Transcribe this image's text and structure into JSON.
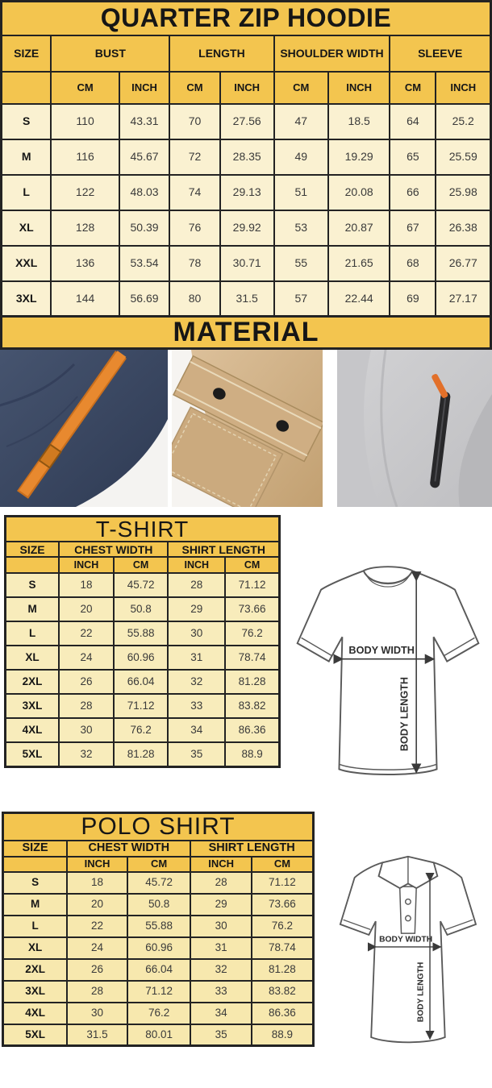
{
  "colors": {
    "band_yellow": "#f3c54f",
    "hoodie_cell": "#faf1d1",
    "tshirt_cell": "#f8ecbb",
    "polo_cell": "#f7e8ae",
    "table_border": "#232323",
    "photo_navy": "#3d4b66",
    "photo_orange": "#e8892f",
    "photo_khaki": "#cfae83",
    "photo_gray": "#c9c9cb"
  },
  "hoodie_chart": {
    "title": "QUARTER ZIP HOODIE",
    "size_header": "SIZE",
    "groups": [
      "BUST",
      "LENGTH",
      "SHOULDER WIDTH",
      "SLEEVE"
    ],
    "units": [
      "CM",
      "INCH",
      "CM",
      "INCH",
      "CM",
      "INCH",
      "CM",
      "INCH"
    ],
    "rows": [
      {
        "size": "S",
        "values": [
          "110",
          "43.31",
          "70",
          "27.56",
          "47",
          "18.5",
          "64",
          "25.2"
        ]
      },
      {
        "size": "M",
        "values": [
          "116",
          "45.67",
          "72",
          "28.35",
          "49",
          "19.29",
          "65",
          "25.59"
        ]
      },
      {
        "size": "L",
        "values": [
          "122",
          "48.03",
          "74",
          "29.13",
          "51",
          "20.08",
          "66",
          "25.98"
        ]
      },
      {
        "size": "XL",
        "values": [
          "128",
          "50.39",
          "76",
          "29.92",
          "53",
          "20.87",
          "67",
          "26.38"
        ]
      },
      {
        "size": "XXL",
        "values": [
          "136",
          "53.54",
          "78",
          "30.71",
          "55",
          "21.65",
          "68",
          "26.77"
        ]
      },
      {
        "size": "3XL",
        "values": [
          "144",
          "56.69",
          "80",
          "31.5",
          "57",
          "22.44",
          "69",
          "27.17"
        ]
      }
    ]
  },
  "material": {
    "title": "MATERIAL",
    "photos": [
      {
        "name": "navy-fleece-with-orange-drawcord"
      },
      {
        "name": "khaki-fabric-snap-flap-pocket"
      },
      {
        "name": "gray-fleece-zip-pocket"
      }
    ]
  },
  "tshirt_chart": {
    "title": "T-SHIRT",
    "size_header": "SIZE",
    "groups": [
      "CHEST WIDTH",
      "SHIRT LENGTH"
    ],
    "units": [
      "INCH",
      "CM",
      "INCH",
      "CM"
    ],
    "rows": [
      {
        "size": "S",
        "values": [
          "18",
          "45.72",
          "28",
          "71.12"
        ]
      },
      {
        "size": "M",
        "values": [
          "20",
          "50.8",
          "29",
          "73.66"
        ]
      },
      {
        "size": "L",
        "values": [
          "22",
          "55.88",
          "30",
          "76.2"
        ]
      },
      {
        "size": "XL",
        "values": [
          "24",
          "60.96",
          "31",
          "78.74"
        ]
      },
      {
        "size": "2XL",
        "values": [
          "26",
          "66.04",
          "32",
          "81.28"
        ]
      },
      {
        "size": "3XL",
        "values": [
          "28",
          "71.12",
          "33",
          "83.82"
        ]
      },
      {
        "size": "4XL",
        "values": [
          "30",
          "76.2",
          "34",
          "86.36"
        ]
      },
      {
        "size": "5XL",
        "values": [
          "32",
          "81.28",
          "35",
          "88.9"
        ]
      }
    ],
    "diagram": {
      "width_label": "BODY WIDTH",
      "length_label": "BODY LENGTH"
    }
  },
  "polo_chart": {
    "title": "POLO SHIRT",
    "size_header": "SIZE",
    "groups": [
      "CHEST WIDTH",
      "SHIRT LENGTH"
    ],
    "units": [
      "INCH",
      "CM",
      "INCH",
      "CM"
    ],
    "rows": [
      {
        "size": "S",
        "values": [
          "18",
          "45.72",
          "28",
          "71.12"
        ]
      },
      {
        "size": "M",
        "values": [
          "20",
          "50.8",
          "29",
          "73.66"
        ]
      },
      {
        "size": "L",
        "values": [
          "22",
          "55.88",
          "30",
          "76.2"
        ]
      },
      {
        "size": "XL",
        "values": [
          "24",
          "60.96",
          "31",
          "78.74"
        ]
      },
      {
        "size": "2XL",
        "values": [
          "26",
          "66.04",
          "32",
          "81.28"
        ]
      },
      {
        "size": "3XL",
        "values": [
          "28",
          "71.12",
          "33",
          "83.82"
        ]
      },
      {
        "size": "4XL",
        "values": [
          "30",
          "76.2",
          "34",
          "86.36"
        ]
      },
      {
        "size": "5XL",
        "values": [
          "31.5",
          "80.01",
          "35",
          "88.9"
        ]
      }
    ],
    "diagram": {
      "width_label": "BODY WIDTH",
      "length_label": "BODY LENGTH"
    }
  }
}
